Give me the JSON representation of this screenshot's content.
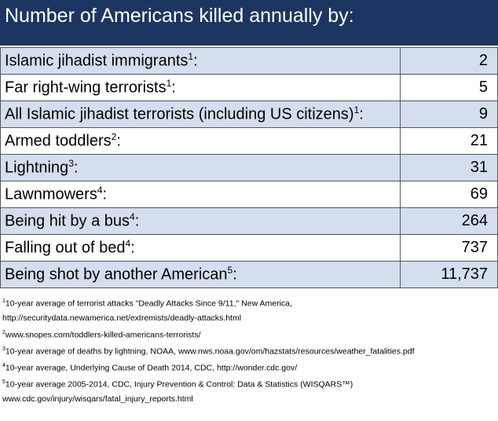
{
  "header": {
    "title": "Number of Americans killed annually by:"
  },
  "table": {
    "rows": [
      {
        "label": "Islamic jihadist immigrants",
        "note": "1",
        "end": ":",
        "value": "2"
      },
      {
        "label": "Far right-wing terrorists",
        "note": "1",
        "end": ":",
        "value": "5"
      },
      {
        "label": "All Islamic jihadist terrorists (including US citizens)",
        "note": "1",
        "end": ":",
        "value": "9"
      },
      {
        "label": "Armed toddlers",
        "note": "2",
        "end": ":",
        "value": "21"
      },
      {
        "label": "Lightning",
        "note": "3",
        "end": ":",
        "value": "31"
      },
      {
        "label": "Lawnmowers",
        "note": "4",
        "end": ":",
        "value": "69"
      },
      {
        "label": "Being hit by a bus",
        "note": "4",
        "end": ":",
        "value": "264"
      },
      {
        "label": "Falling out of bed",
        "note": "4",
        "end": ":",
        "value": "737"
      },
      {
        "label": "Being shot by another American",
        "note": "5",
        "end": ":",
        "value": "11,737"
      }
    ]
  },
  "footnotes": [
    {
      "mark": "1",
      "lines": [
        "10-year average of terrorist attacks  \"Deadly Attacks Since 9/11,\" New America,",
        "http://securitydata.newamerica.net/extremists/deadly-attacks.html"
      ]
    },
    {
      "mark": "2",
      "lines": [
        "www.snopes.com/toddlers-killed-americans-terrorists/"
      ]
    },
    {
      "mark": "3",
      "lines": [
        "10-year average of deaths by lightning, NOAA, www.nws.noaa.gov/om/hazstats/resources/weather_fatalities.pdf"
      ]
    },
    {
      "mark": "4",
      "lines": [
        "10-year average, Underlying Cause of Death 2014, CDC, http://wonder.cdc.gov/"
      ]
    },
    {
      "mark": "5",
      "lines": [
        "10-year average 2005-2014, CDC, Injury Prevention & Control: Data & Statistics (WISQARS™)",
        "www.cdc.gov/injury/wisqars/fatal_injury_reports.html"
      ]
    }
  ]
}
